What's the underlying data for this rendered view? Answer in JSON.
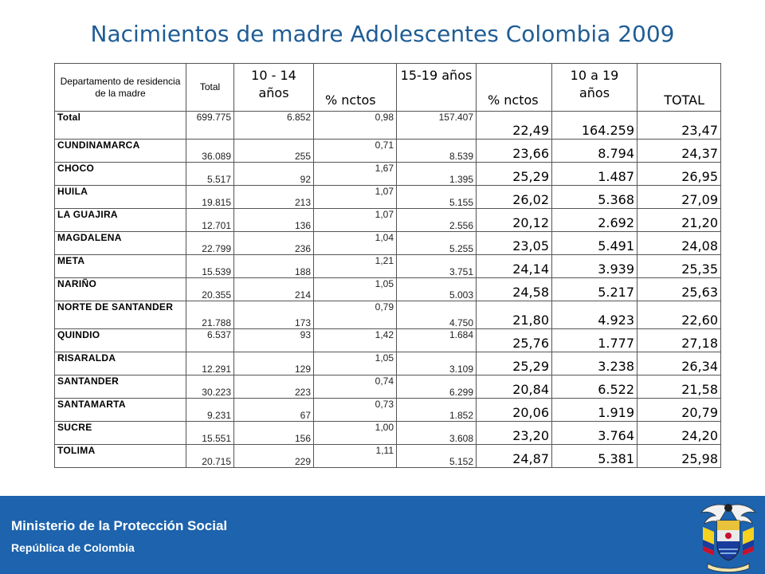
{
  "title": "Nacimientos de madre Adolescentes  Colombia 2009",
  "table": {
    "headers": [
      "Departamento de residencia de la madre",
      "Total",
      "10 - 14 años",
      "% nctos",
      "15-19 años",
      "% nctos",
      "10 a 19 años",
      "TOTAL"
    ],
    "rows": [
      [
        "Total",
        "699.775",
        "6.852",
        "0,98",
        "157.407",
        "22,49",
        "164.259",
        "23,47"
      ],
      [
        "CUNDINAMARCA",
        "36.089",
        "255",
        "0,71",
        "8.539",
        "23,66",
        "8.794",
        "24,37"
      ],
      [
        "CHOCO",
        "5.517",
        "92",
        "1,67",
        "1.395",
        "25,29",
        "1.487",
        "26,95"
      ],
      [
        "HUILA",
        "19.815",
        "213",
        "1,07",
        "5.155",
        "26,02",
        "5.368",
        "27,09"
      ],
      [
        "LA GUAJIRA",
        "12.701",
        "136",
        "1,07",
        "2.556",
        "20,12",
        "2.692",
        "21,20"
      ],
      [
        "MAGDALENA",
        "22.799",
        "236",
        "1,04",
        "5.255",
        "23,05",
        "5.491",
        "24,08"
      ],
      [
        "META",
        "15.539",
        "188",
        "1,21",
        "3.751",
        "24,14",
        "3.939",
        "25,35"
      ],
      [
        "NARIÑO",
        "20.355",
        "214",
        "1,05",
        "5.003",
        "24,58",
        "5.217",
        "25,63"
      ],
      [
        "NORTE DE SANTANDER",
        "21.788",
        "173",
        "0,79",
        "4.750",
        "21,80",
        "4.923",
        "22,60"
      ],
      [
        "QUINDIO",
        "6.537",
        "93",
        "1,42",
        "1.684",
        "25,76",
        "1.777",
        "27,18"
      ],
      [
        "RISARALDA",
        "12.291",
        "129",
        "1,05",
        "3.109",
        "25,29",
        "3.238",
        "26,34"
      ],
      [
        "SANTANDER",
        "30.223",
        "223",
        "0,74",
        "6.299",
        "20,84",
        "6.522",
        "21,58"
      ],
      [
        "SANTAMARTA",
        "9.231",
        "67",
        "0,73",
        "1.852",
        "20,06",
        "1.919",
        "20,79"
      ],
      [
        "SUCRE",
        "15.551",
        "156",
        "1,00",
        "3.608",
        "23,20",
        "3.764",
        "24,20"
      ],
      [
        "TOLIMA",
        "20.715",
        "229",
        "1,11",
        "5.152",
        "24,87",
        "5.381",
        "25,98"
      ]
    ]
  },
  "footer": {
    "ministry": "Ministerio de la Protección Social",
    "republic": "República de Colombia",
    "seal_icon": "coat-of-arms-icon",
    "seal_motto": "Libertad y Orden"
  },
  "colors": {
    "title": "#1f5d96",
    "footer_background": "#1d63ad",
    "footer_text": "#ffffff"
  }
}
